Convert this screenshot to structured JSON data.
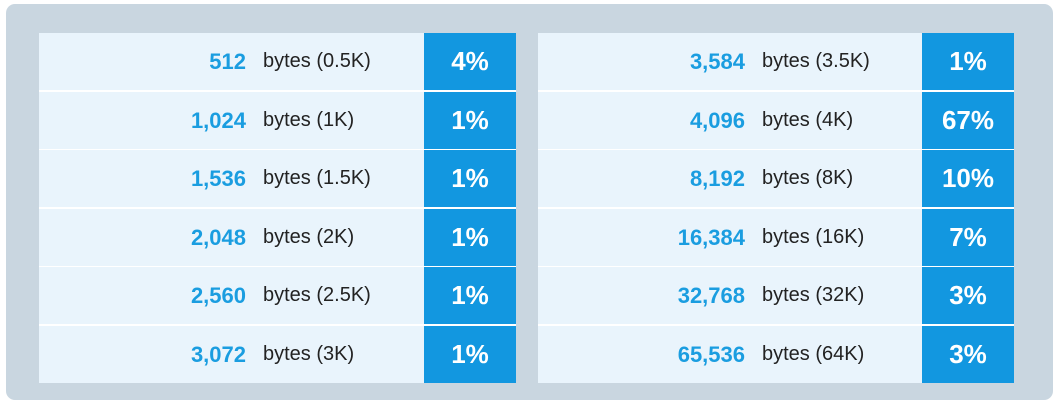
{
  "chart_data": {
    "type": "table",
    "columns": [
      {
        "rows": [
          {
            "bytes": "512",
            "label": "bytes (0.5K)",
            "percent": "4%"
          },
          {
            "bytes": "1,024",
            "label": "bytes (1K)",
            "percent": "1%"
          },
          {
            "bytes": "1,536",
            "label": "bytes (1.5K)",
            "percent": "1%"
          },
          {
            "bytes": "2,048",
            "label": "bytes (2K)",
            "percent": "1%"
          },
          {
            "bytes": "2,560",
            "label": "bytes (2.5K)",
            "percent": "1%"
          },
          {
            "bytes": "3,072",
            "label": "bytes (3K)",
            "percent": "1%"
          }
        ]
      },
      {
        "rows": [
          {
            "bytes": "3,584",
            "label": "bytes (3.5K)",
            "percent": "1%"
          },
          {
            "bytes": "4,096",
            "label": "bytes (4K)",
            "percent": "67%"
          },
          {
            "bytes": "8,192",
            "label": "bytes (8K)",
            "percent": "10%"
          },
          {
            "bytes": "16,384",
            "label": "bytes (16K)",
            "percent": "7%"
          },
          {
            "bytes": "32,768",
            "label": "bytes (32K)",
            "percent": "3%"
          },
          {
            "bytes": "65,536",
            "label": "bytes (64K)",
            "percent": "3%"
          }
        ]
      }
    ]
  },
  "colors": {
    "frame": "#c9d6e0",
    "row_background": "#e9f4fc",
    "number_text": "#1a9de0",
    "percent_cell": "#1297e0",
    "percent_text": "#ffffff"
  }
}
